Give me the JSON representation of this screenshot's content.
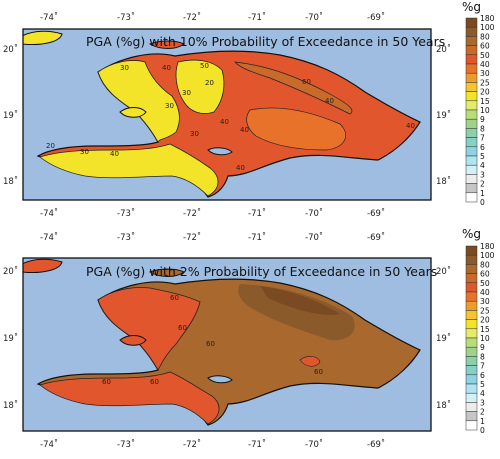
{
  "maps": [
    {
      "title": "PGA (%g) with 10% Probability of Exceedance in 50 Years",
      "lon_ticks_top": [
        "-74˚",
        "-73˚",
        "-72˚",
        "-71˚",
        "-70˚",
        "-69˚"
      ],
      "lon_ticks_bottom": [
        "-74˚",
        "-73˚",
        "-72˚",
        "-71˚",
        "-70˚",
        "-69˚"
      ],
      "lat_ticks": [
        "20˚",
        "19˚",
        "18˚"
      ],
      "contour_labels": [
        "30",
        "40",
        "50",
        "60",
        "20",
        "30",
        "40",
        "30",
        "40",
        "30",
        "40",
        "20",
        "30",
        "40",
        "40",
        "40"
      ]
    },
    {
      "title": "PGA (%g) with 2% Probability of Exceedance in 50 Years",
      "lon_ticks_top": [
        "-74˚",
        "-73˚",
        "-72˚",
        "-71˚",
        "-70˚",
        "-69˚"
      ],
      "lon_ticks_bottom": [
        "-74˚",
        "-73˚",
        "-72˚",
        "-71˚",
        "-70˚",
        "-69˚"
      ],
      "lat_ticks": [
        "20˚",
        "19˚",
        "18˚"
      ],
      "contour_labels": [
        "60",
        "60",
        "60",
        "60",
        "60",
        "60"
      ]
    }
  ],
  "legend": {
    "unit": "%g",
    "levels": [
      "180",
      "100",
      "80",
      "60",
      "50",
      "40",
      "30",
      "25",
      "20",
      "15",
      "10",
      "9",
      "8",
      "7",
      "6",
      "5",
      "4",
      "3",
      "2",
      "1",
      "0"
    ],
    "colors": [
      "#7a4a22",
      "#8b5a2b",
      "#a8682e",
      "#c96a2a",
      "#e2562d",
      "#e9722b",
      "#ef9a2d",
      "#f6c42e",
      "#f3e42a",
      "#e4ec6c",
      "#b8de7a",
      "#9fd38a",
      "#8cd0a7",
      "#86d1c6",
      "#8fd3e3",
      "#b0e4f2",
      "#d2f0f8",
      "#ececec",
      "#c6c6c6",
      "#ffffff"
    ]
  },
  "colors": {
    "ocean": "#9fbde0",
    "frame": "#111111"
  }
}
